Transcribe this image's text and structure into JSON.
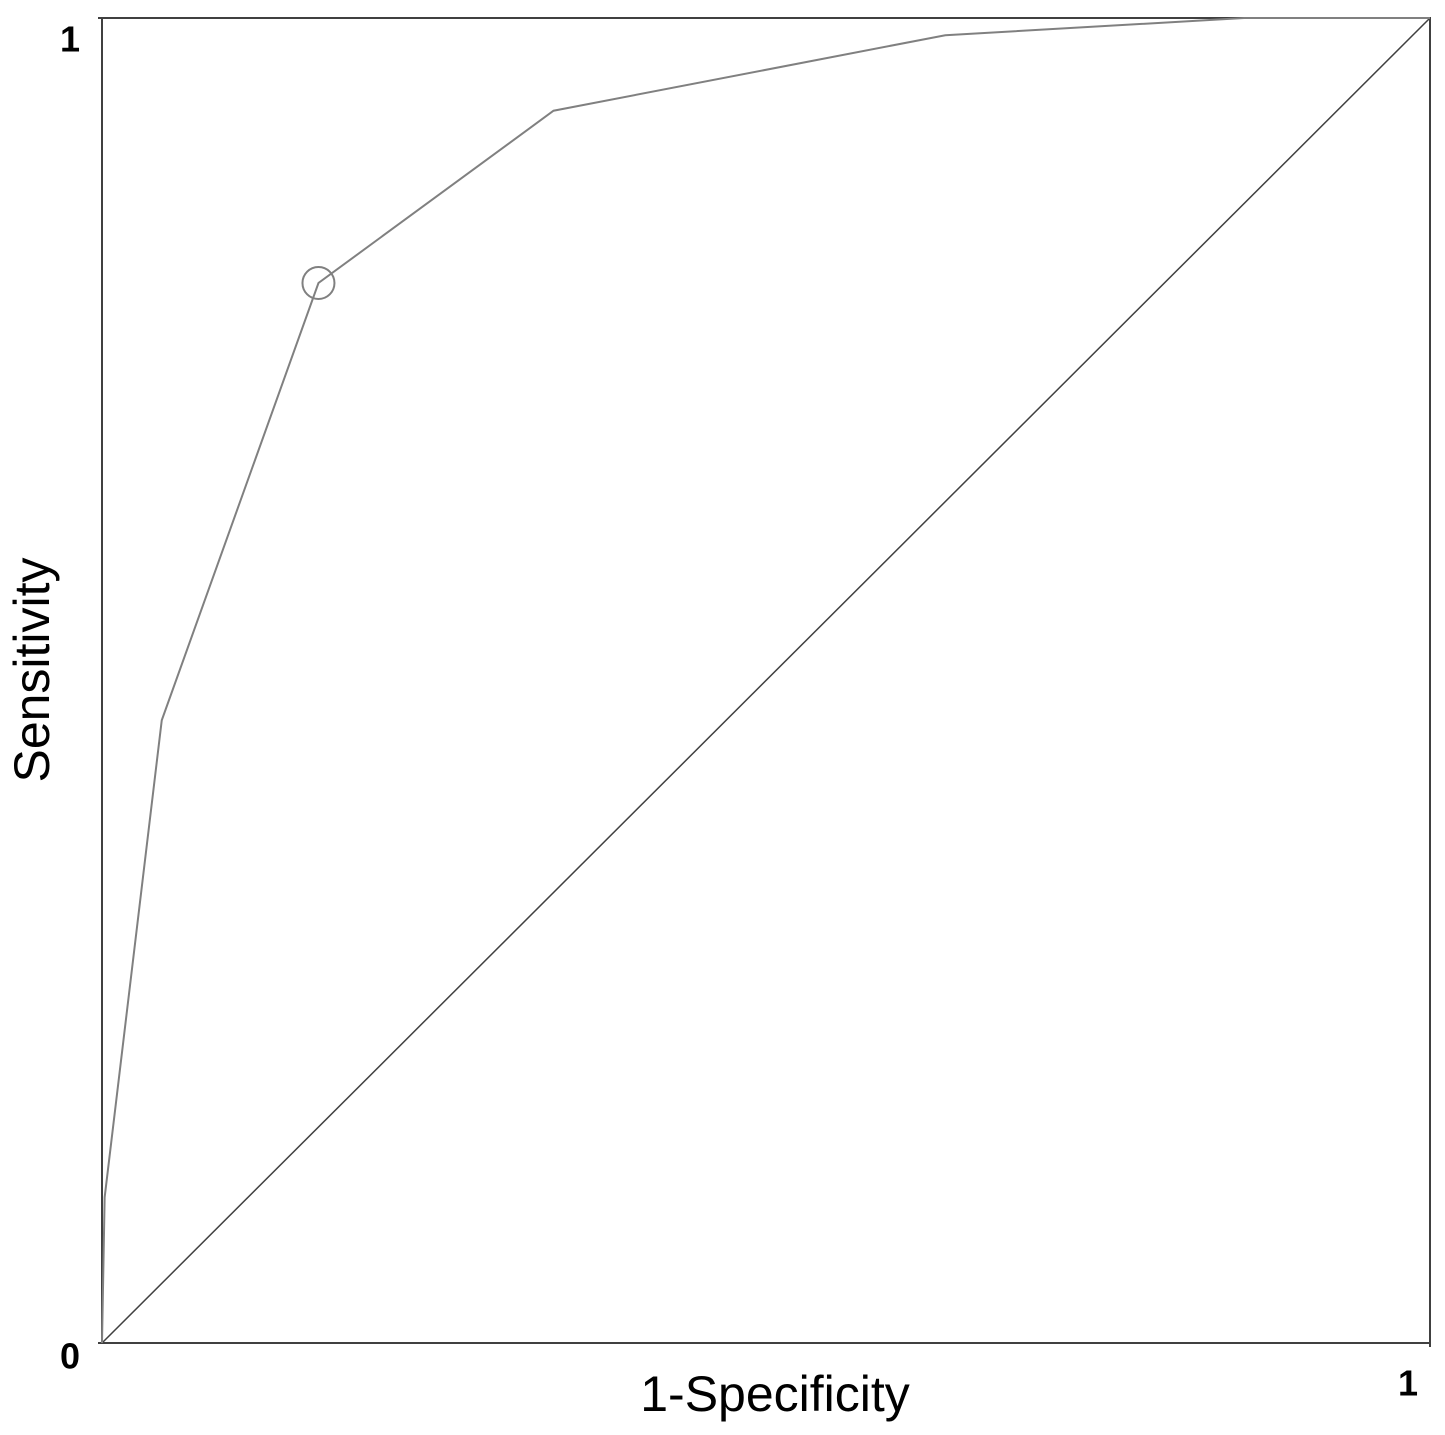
{
  "chart_data": {
    "type": "line",
    "x_label": "1-Specificity",
    "y_label": "Sensitivity",
    "x": [
      0,
      0.002,
      0.045,
      0.163,
      0.34,
      0.635,
      0.86,
      1
    ],
    "series": [
      {
        "color": "#808080",
        "values": [
          0,
          0.11,
          0.47,
          0.8,
          0.93,
          0.987,
          1,
          1
        ]
      }
    ],
    "highlight": {
      "x": 0.163,
      "y": 0.8,
      "color": "#808080"
    },
    "diagonal": true,
    "xlim": [
      0,
      1
    ],
    "ylim": [
      0,
      1
    ],
    "xticks": [
      1
    ],
    "yticks": [
      0,
      1
    ],
    "grid": false
  }
}
